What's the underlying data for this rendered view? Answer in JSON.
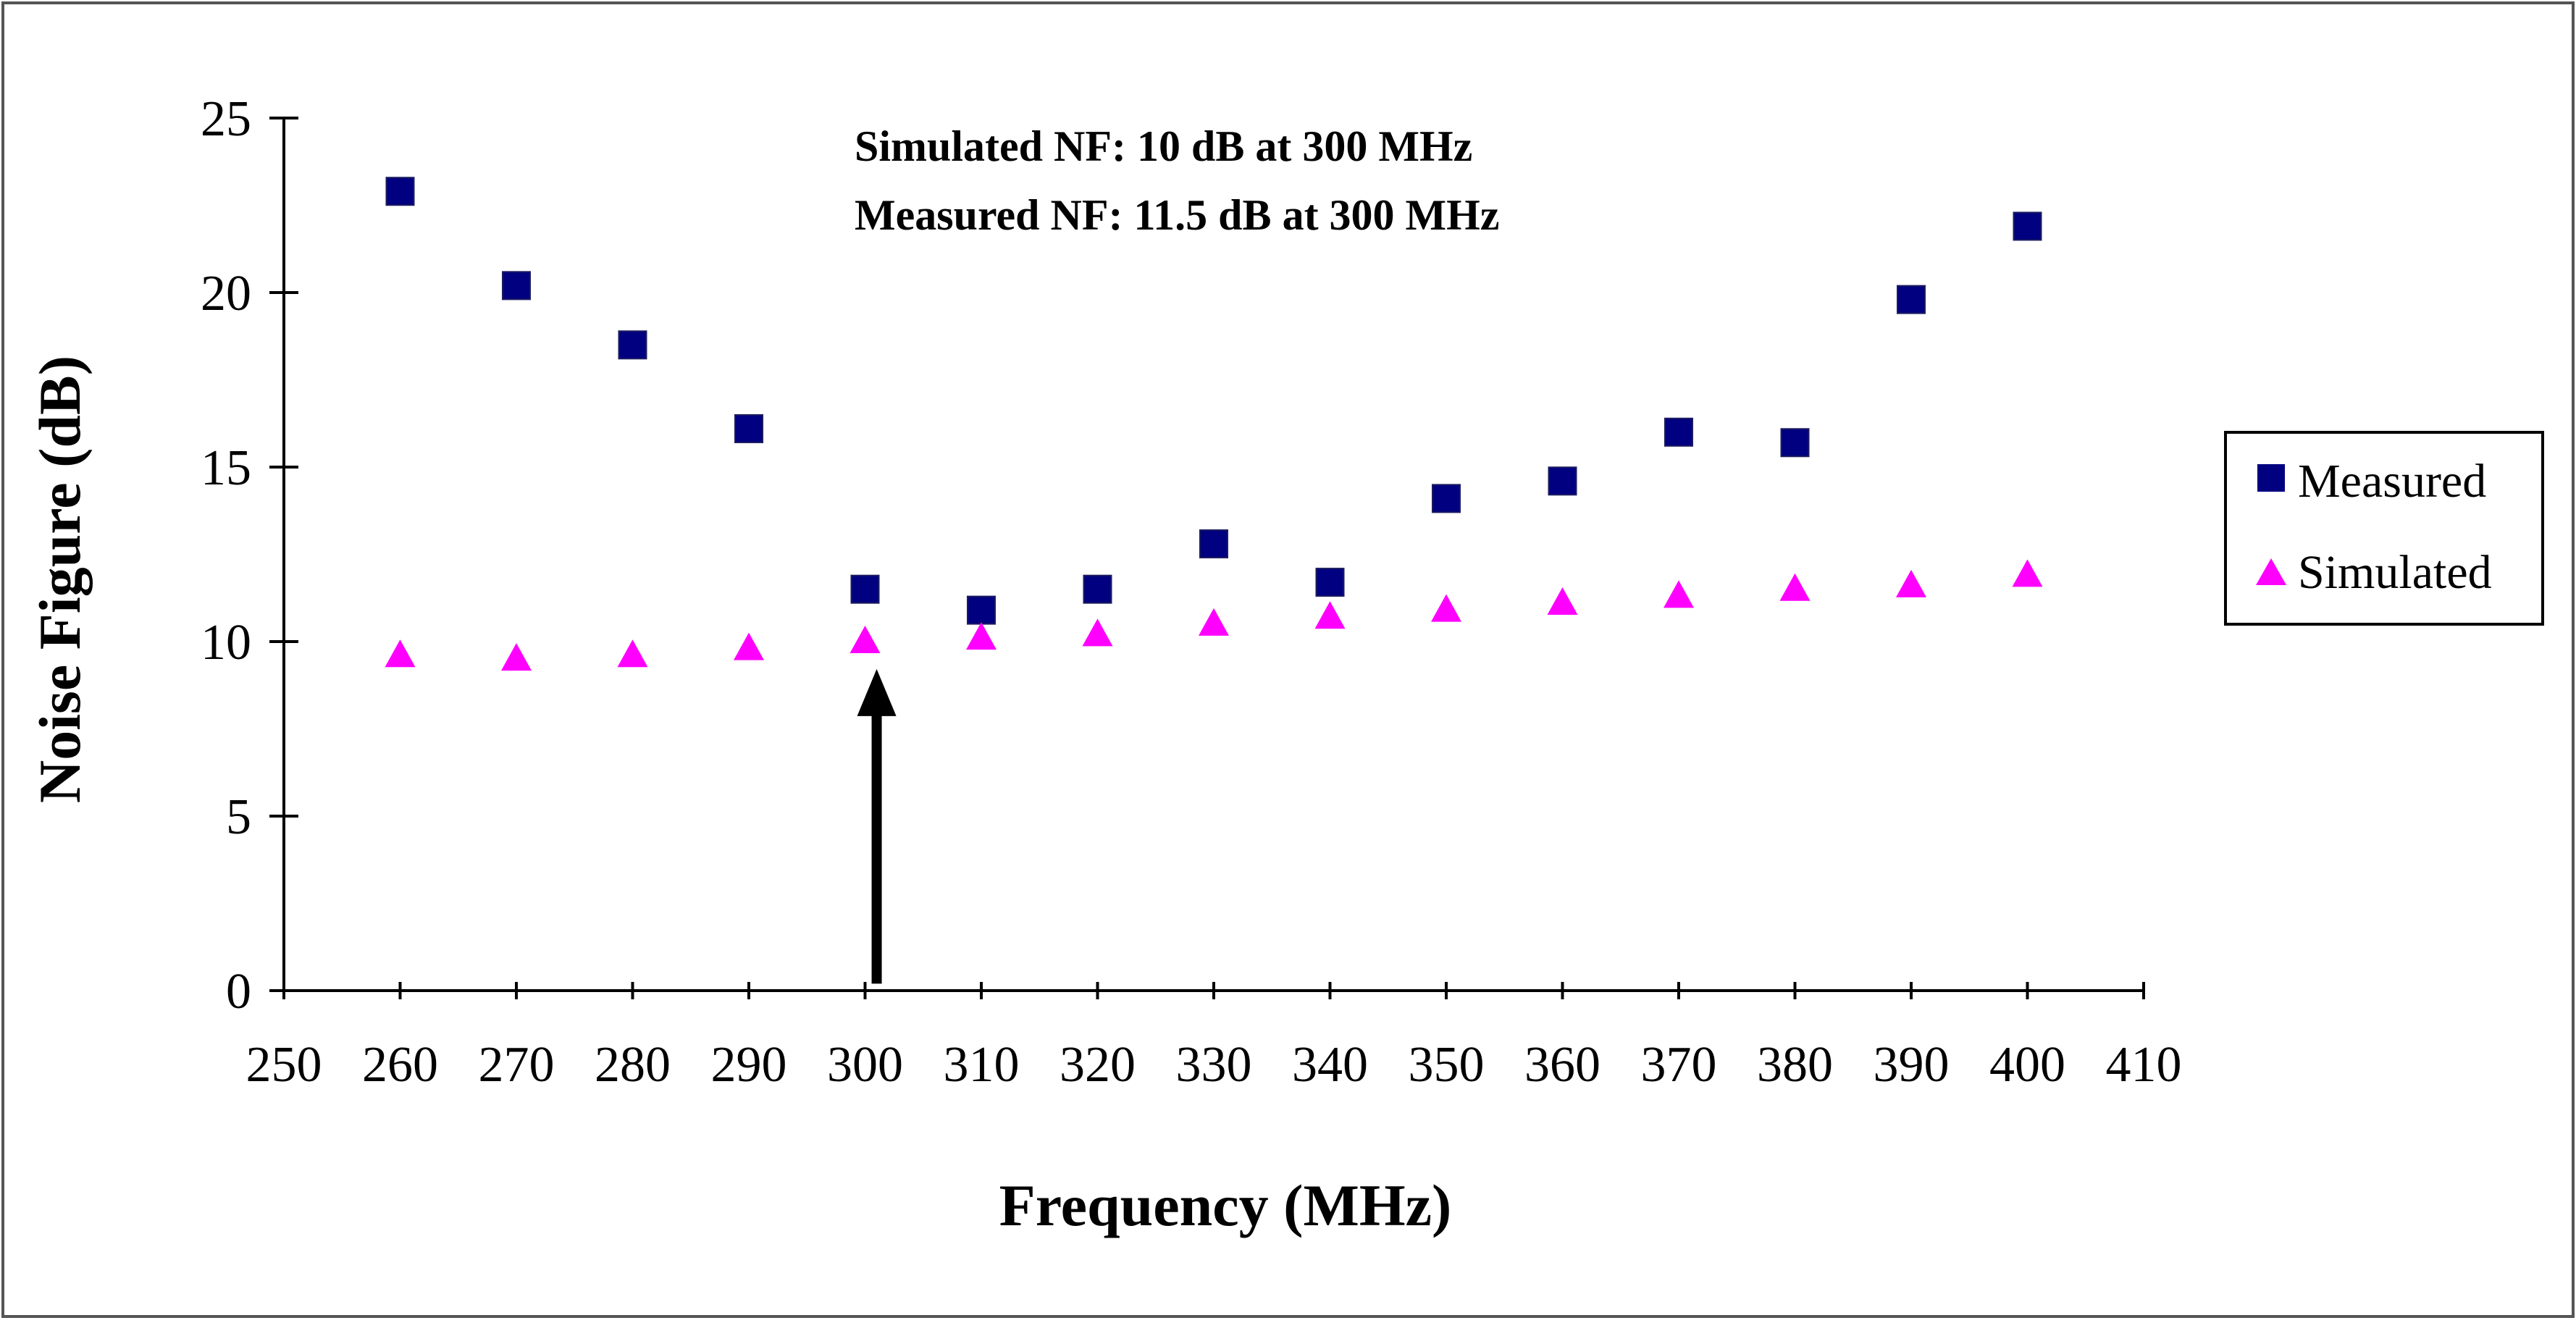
{
  "chart_data": {
    "type": "scatter",
    "title": "",
    "xlabel": "Frequency (MHz)",
    "ylabel": "Noise Figure (dB)",
    "xlim": [
      250,
      410
    ],
    "ylim": [
      0,
      25
    ],
    "xticks": [
      250,
      260,
      270,
      280,
      290,
      300,
      310,
      320,
      330,
      340,
      350,
      360,
      370,
      380,
      390,
      400,
      410
    ],
    "yticks": [
      0,
      5,
      10,
      15,
      20,
      25
    ],
    "grid": false,
    "legend_position": "right",
    "x": [
      260,
      270,
      280,
      290,
      300,
      310,
      320,
      330,
      340,
      350,
      360,
      370,
      380,
      390,
      400
    ],
    "series": [
      {
        "name": "Measured",
        "marker": "square",
        "color": "#000080",
        "values": [
          22.9,
          20.2,
          18.5,
          16.1,
          11.5,
          10.9,
          11.5,
          12.8,
          11.7,
          14.1,
          14.6,
          16.0,
          15.7,
          19.8,
          21.9
        ]
      },
      {
        "name": "Simulated",
        "marker": "triangle",
        "color": "#ff00ff",
        "values": [
          9.6,
          9.5,
          9.6,
          9.8,
          10.0,
          10.1,
          10.2,
          10.5,
          10.7,
          10.9,
          11.1,
          11.3,
          11.5,
          11.6,
          11.9
        ]
      }
    ],
    "annotations": [
      "Simulated NF: 10 dB at 300 MHz",
      "Measured NF: 11.5 dB at 300 MHz"
    ],
    "arrow": {
      "x": 301,
      "y_from": 0.2,
      "y_to": 8.8
    }
  }
}
